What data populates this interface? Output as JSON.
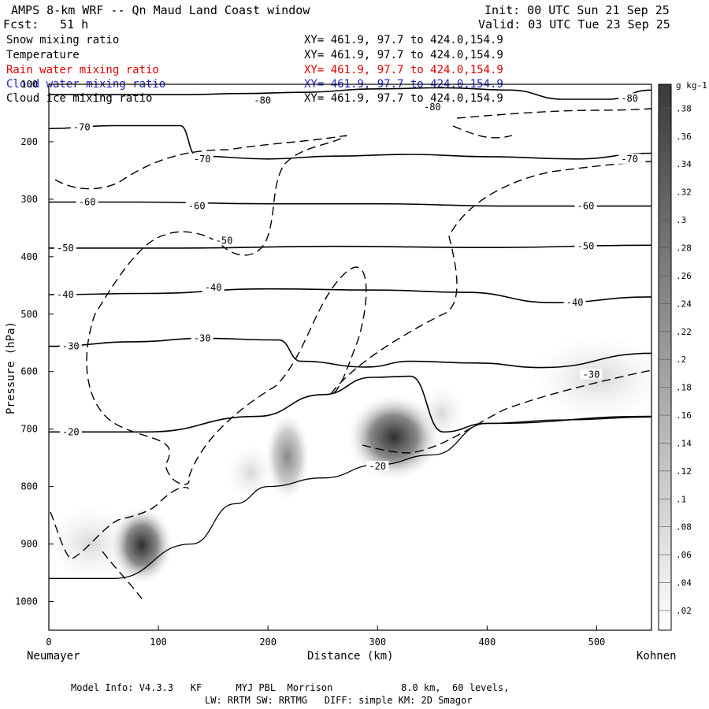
{
  "header": {
    "title": "AMPS 8-km WRF -- Qn Maud Land Coast window",
    "init": "Init: 00 UTC Sun 21 Sep 25",
    "fcst_label": "Fcst:",
    "fcst_value": "51 h",
    "valid": "Valid: 03 UTC Tue 23 Sep 25"
  },
  "fields": [
    {
      "name": "Snow mixing ratio",
      "xy": "XY= 461.9, 97.7 to 424.0,154.9",
      "color": "#000000"
    },
    {
      "name": "Temperature",
      "xy": "XY= 461.9, 97.7 to 424.0,154.9",
      "color": "#000000"
    },
    {
      "name": "Rain water mixing ratio",
      "xy": "XY= 461.9, 97.7 to 424.0,154.9",
      "color": "#e00000"
    },
    {
      "name": "Cloud water mixing ratio",
      "xy": "XY= 461.9, 97.7 to 424.0,154.9",
      "color": "#2020c0"
    },
    {
      "name": "Cloud ice mixing ratio",
      "xy": "XY= 461.9, 97.7 to 424.0,154.9",
      "color": "#000000"
    }
  ],
  "chart_data": {
    "type": "cross-section contour",
    "ylabel": "Pressure (hPa)",
    "xlabel": "Distance (km)",
    "x_left_label": "Neumayer",
    "x_right_label": "Kohnen",
    "xlim": [
      0,
      550
    ],
    "ylim": [
      1050,
      100
    ],
    "x_ticks": [
      0,
      100,
      200,
      300,
      400,
      500
    ],
    "y_ticks": [
      200,
      300,
      400,
      500,
      600,
      700,
      800,
      900,
      1000
    ],
    "y_top_label": "100",
    "temperature_contours_C": [
      {
        "level": -80,
        "labels": [
          {
            "x": 195,
            "p": 128
          },
          {
            "x": 350,
            "p": 140
          },
          {
            "x": 530,
            "p": 125
          }
        ],
        "points": [
          [
            0,
            118
          ],
          [
            120,
            118
          ],
          [
            180,
            116
          ],
          [
            230,
            114
          ],
          [
            300,
            108
          ],
          [
            360,
            106
          ],
          [
            420,
            110
          ],
          [
            470,
            126
          ],
          [
            510,
            126
          ],
          [
            550,
            110
          ]
        ]
      },
      {
        "level": -70,
        "labels": [
          {
            "x": 30,
            "p": 175
          },
          {
            "x": 140,
            "p": 230
          },
          {
            "x": 530,
            "p": 230
          }
        ],
        "points": [
          [
            0,
            177
          ],
          [
            60,
            172
          ],
          [
            120,
            172
          ],
          [
            135,
            225
          ],
          [
            200,
            230
          ],
          [
            260,
            225
          ],
          [
            330,
            222
          ],
          [
            400,
            226
          ],
          [
            480,
            230
          ],
          [
            550,
            220
          ]
        ]
      },
      {
        "level": -60,
        "labels": [
          {
            "x": 35,
            "p": 305
          },
          {
            "x": 135,
            "p": 312
          },
          {
            "x": 490,
            "p": 312
          }
        ],
        "points": [
          [
            0,
            305
          ],
          [
            80,
            305
          ],
          [
            200,
            308
          ],
          [
            300,
            308
          ],
          [
            420,
            312
          ],
          [
            550,
            312
          ]
        ]
      },
      {
        "level": -50,
        "labels": [
          {
            "x": 15,
            "p": 385
          },
          {
            "x": 160,
            "p": 372
          },
          {
            "x": 490,
            "p": 382
          }
        ],
        "points": [
          [
            0,
            385
          ],
          [
            120,
            385
          ],
          [
            260,
            382
          ],
          [
            400,
            384
          ],
          [
            550,
            380
          ]
        ]
      },
      {
        "level": -40,
        "labels": [
          {
            "x": 15,
            "p": 466
          },
          {
            "x": 150,
            "p": 454
          },
          {
            "x": 480,
            "p": 480
          }
        ],
        "points": [
          [
            0,
            466
          ],
          [
            90,
            464
          ],
          [
            200,
            456
          ],
          [
            300,
            458
          ],
          [
            380,
            462
          ],
          [
            460,
            480
          ],
          [
            550,
            470
          ]
        ]
      },
      {
        "level": -30,
        "labels": [
          {
            "x": 20,
            "p": 556
          },
          {
            "x": 140,
            "p": 542
          },
          {
            "x": 495,
            "p": 605
          }
        ],
        "points": [
          [
            0,
            556
          ],
          [
            80,
            548
          ],
          [
            140,
            542
          ],
          [
            210,
            545
          ],
          [
            230,
            582
          ],
          [
            290,
            592
          ],
          [
            330,
            582
          ],
          [
            390,
            585
          ],
          [
            450,
            593
          ],
          [
            550,
            568
          ]
        ]
      },
      {
        "level": -20,
        "labels": [
          {
            "x": 20,
            "p": 705
          },
          {
            "x": 300,
            "p": 765
          }
        ],
        "points": [
          [
            0,
            705
          ],
          [
            90,
            705
          ],
          [
            190,
            678
          ],
          [
            250,
            640
          ],
          [
            295,
            610
          ],
          [
            330,
            608
          ],
          [
            360,
            705
          ],
          [
            400,
            690
          ],
          [
            550,
            678
          ]
        ]
      }
    ],
    "terrain_profile": [
      [
        0,
        960
      ],
      [
        60,
        960
      ],
      [
        130,
        900
      ],
      [
        170,
        830
      ],
      [
        200,
        800
      ],
      [
        250,
        785
      ],
      [
        300,
        762
      ],
      [
        350,
        745
      ],
      [
        400,
        690
      ],
      [
        470,
        684
      ],
      [
        550,
        679
      ]
    ],
    "shading_legend": {
      "units": "g kg-1",
      "levels": [
        ".38",
        ".36",
        ".34",
        ".32",
        ".3",
        ".28",
        ".26",
        ".24",
        ".22",
        ".2",
        ".18",
        ".16",
        ".14",
        ".12",
        ".1",
        ".08",
        ".06",
        ".04",
        ".02"
      ]
    }
  },
  "footer": {
    "line1": "Model Info: V4.3.3   KF      MYJ PBL  Morrison            8.0 km,  60 levels,",
    "line2": "LW: RRTM SW: RRTMG   DIFF: simple KM: 2D Smagor"
  }
}
